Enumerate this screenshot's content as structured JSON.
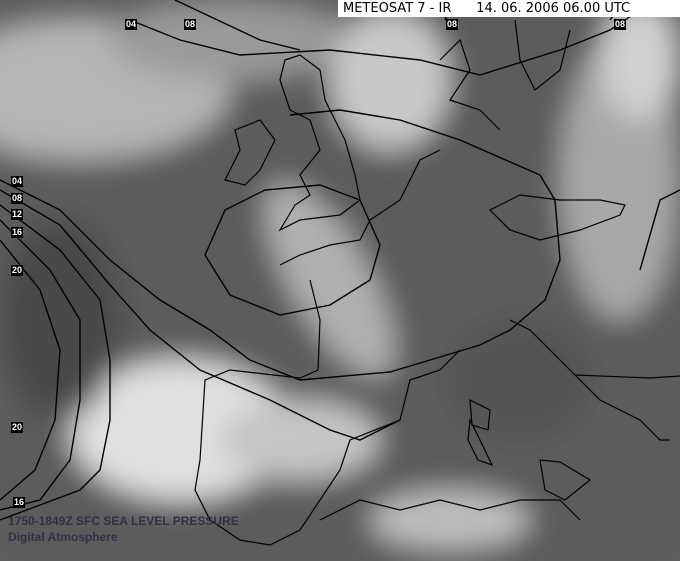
{
  "header": {
    "satellite": "METEOSAT 7 - IR",
    "datetime": "14. 06. 2006 06.00 UTC"
  },
  "footer": {
    "product": "1750-1849Z SFC SEA LEVEL PRESSURE",
    "source": "Digital Atmosphere"
  },
  "isobar_labels": {
    "top": [
      "04",
      "08",
      "08",
      "08"
    ],
    "left": [
      "04",
      "08",
      "12",
      "16",
      "20",
      "20",
      "16"
    ]
  },
  "colors": {
    "isobar": "#000000",
    "coastline": "#000000",
    "header_bg": "#ffffff",
    "credit_text": "#2f3142"
  }
}
